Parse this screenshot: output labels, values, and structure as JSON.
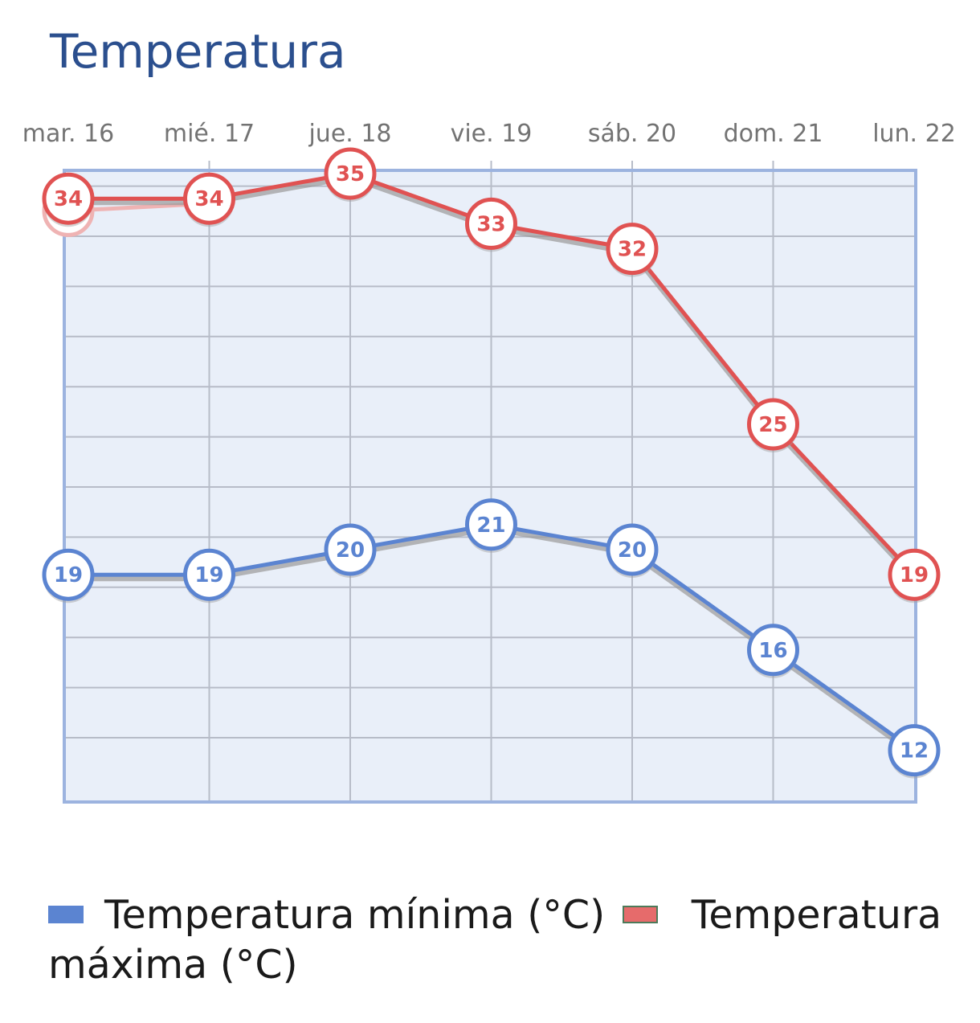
{
  "title": "Temperatura",
  "chart_data": {
    "type": "line",
    "title": "Temperatura",
    "categories": [
      "mar. 16",
      "mié. 17",
      "jue. 18",
      "vie. 19",
      "sáb. 20",
      "dom. 21",
      "lun. 22"
    ],
    "series": [
      {
        "name": "Temperatura mínima (°C)",
        "values": [
          19,
          19,
          20,
          21,
          20,
          16,
          12
        ],
        "color": "#5b84d1"
      },
      {
        "name": "Temperatura máxima (°C)",
        "values": [
          34,
          34,
          35,
          33,
          32,
          25,
          19
        ],
        "color": "#e05252"
      }
    ],
    "ghost_point": {
      "category": "mar. 16",
      "value": 33
    },
    "ylim": [
      10,
      35
    ],
    "grid": true,
    "legend_position": "bottom",
    "xlabel": "",
    "ylabel": ""
  },
  "colors": {
    "plot_background": "#e9eff9",
    "plot_border": "#9cb3df",
    "grid": "#b7bcc8",
    "min_series": "#5b84d1",
    "max_series": "#e05252"
  }
}
